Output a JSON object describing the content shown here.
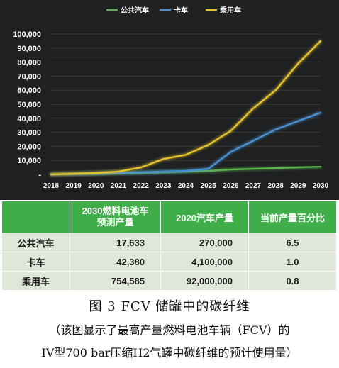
{
  "chart_data": {
    "type": "line",
    "x": [
      2018,
      2019,
      2020,
      2021,
      2022,
      2023,
      2024,
      2025,
      2026,
      2027,
      2028,
      2029,
      2030
    ],
    "x_tick_labels": [
      "2018",
      "2019",
      "2020",
      "2021",
      "2022",
      "2023",
      "2024",
      "2025",
      "2026",
      "2027",
      "2028",
      "2029",
      "2030"
    ],
    "y_tick_labels": [
      "100,000",
      "90,000",
      "80,000",
      "70,000",
      "60,000",
      "50,000",
      "40,000",
      "30,000",
      "20,000",
      "10,000",
      "-"
    ],
    "y_ticks": [
      100000,
      90000,
      80000,
      70000,
      60000,
      50000,
      40000,
      30000,
      20000,
      10000,
      0
    ],
    "ylim": [
      0,
      100000
    ],
    "grid": true,
    "legend_position": "top-center",
    "series": [
      {
        "name": "公共汽车",
        "color": "#5bb450",
        "values": [
          0,
          200,
          400,
          700,
          1000,
          1500,
          2000,
          2500,
          3500,
          4000,
          4500,
          5000,
          5500
        ]
      },
      {
        "name": "卡车",
        "color": "#4a90d0",
        "values": [
          0,
          300,
          600,
          1000,
          1500,
          2000,
          2500,
          4000,
          16000,
          24000,
          32000,
          38000,
          44000
        ]
      },
      {
        "name": "乘用车",
        "color": "#e6c22e",
        "values": [
          0,
          500,
          1000,
          2000,
          5000,
          11000,
          14000,
          21000,
          31000,
          47000,
          60000,
          79000,
          95000
        ]
      }
    ]
  },
  "table": {
    "headers": [
      "",
      "2030燃料电池车\n预测产量",
      "2020汽车产量",
      "当前产量百分比"
    ],
    "rows": [
      [
        "公共汽车",
        "17,633",
        "270,000",
        "6.5"
      ],
      [
        "卡车",
        "42,380",
        "4,100,000",
        "1.0"
      ],
      [
        "乘用车",
        "754,585",
        "92,000,000",
        "0.8"
      ]
    ]
  },
  "caption": {
    "title": "图 3 FCV 储罐中的碳纤维",
    "note_line1": "（该图显示了最高产量燃料电池车辆（FCV）的",
    "note_line2": "IV型700 bar压缩H2气罐中碳纤维的预计使用量）"
  }
}
